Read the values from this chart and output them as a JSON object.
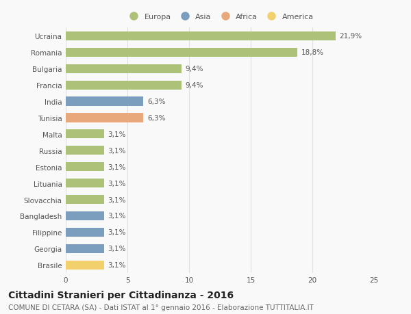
{
  "categories": [
    "Ucraina",
    "Romania",
    "Bulgaria",
    "Francia",
    "India",
    "Tunisia",
    "Malta",
    "Russia",
    "Estonia",
    "Lituania",
    "Slovacchia",
    "Bangladesh",
    "Filippine",
    "Georgia",
    "Brasile"
  ],
  "values": [
    21.9,
    18.8,
    9.4,
    9.4,
    6.3,
    6.3,
    3.1,
    3.1,
    3.1,
    3.1,
    3.1,
    3.1,
    3.1,
    3.1,
    3.1
  ],
  "labels": [
    "21,9%",
    "18,8%",
    "9,4%",
    "9,4%",
    "6,3%",
    "6,3%",
    "3,1%",
    "3,1%",
    "3,1%",
    "3,1%",
    "3,1%",
    "3,1%",
    "3,1%",
    "3,1%",
    "3,1%"
  ],
  "colors": [
    "#adc178",
    "#adc178",
    "#adc178",
    "#adc178",
    "#7b9dbe",
    "#e8a87c",
    "#adc178",
    "#adc178",
    "#adc178",
    "#adc178",
    "#adc178",
    "#7b9dbe",
    "#7b9dbe",
    "#7b9dbe",
    "#f2d06b"
  ],
  "legend": [
    {
      "label": "Europa",
      "color": "#adc178"
    },
    {
      "label": "Asia",
      "color": "#7b9dbe"
    },
    {
      "label": "Africa",
      "color": "#e8a87c"
    },
    {
      "label": "America",
      "color": "#f2d06b"
    }
  ],
  "xlim": [
    0,
    25
  ],
  "xticks": [
    0,
    5,
    10,
    15,
    20,
    25
  ],
  "title": "Cittadini Stranieri per Cittadinanza - 2016",
  "subtitle": "COMUNE DI CETARA (SA) - Dati ISTAT al 1° gennaio 2016 - Elaborazione TUTTITALIA.IT",
  "background_color": "#f9f9f9",
  "grid_color": "#e0e0e0",
  "label_fontsize": 7.5,
  "tick_fontsize": 7.5,
  "title_fontsize": 10,
  "subtitle_fontsize": 7.5
}
